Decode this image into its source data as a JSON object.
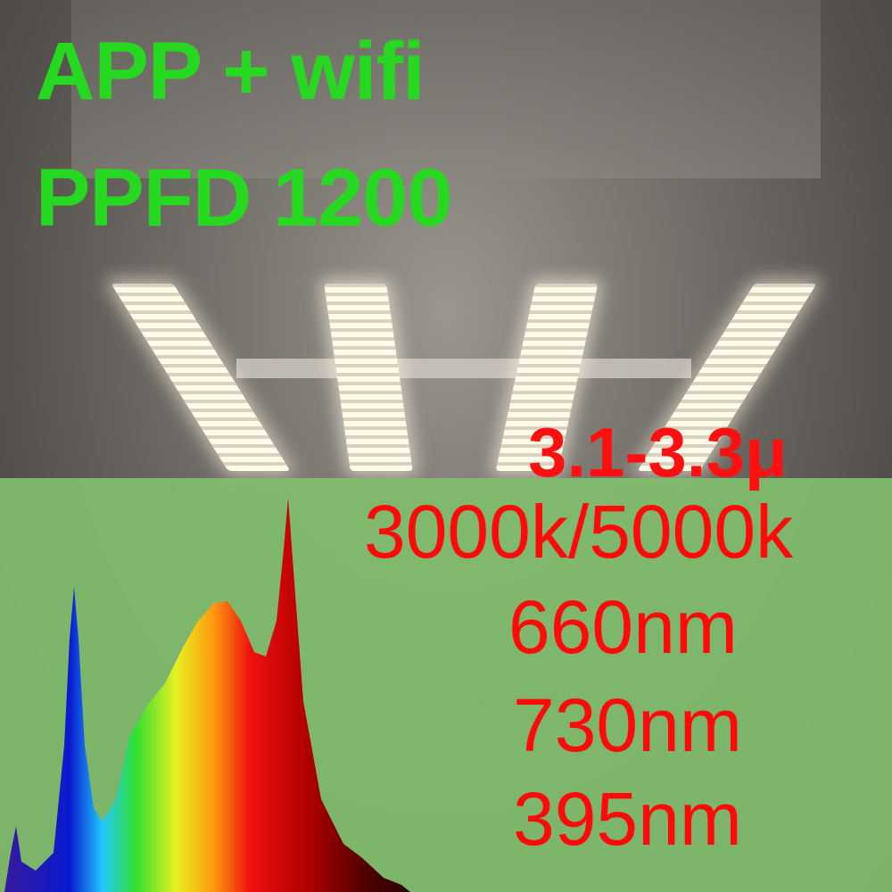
{
  "headline": {
    "line1": "APP + wifi",
    "line2": "PPFD 1200"
  },
  "efficacy": "3.1-3.3μ",
  "specs": [
    "3000k/5000k",
    "660nm",
    "730nm",
    "395nm"
  ],
  "colors": {
    "headline": "#27d821",
    "specs": "#ff0a0a",
    "panel": "#80be6e"
  }
}
